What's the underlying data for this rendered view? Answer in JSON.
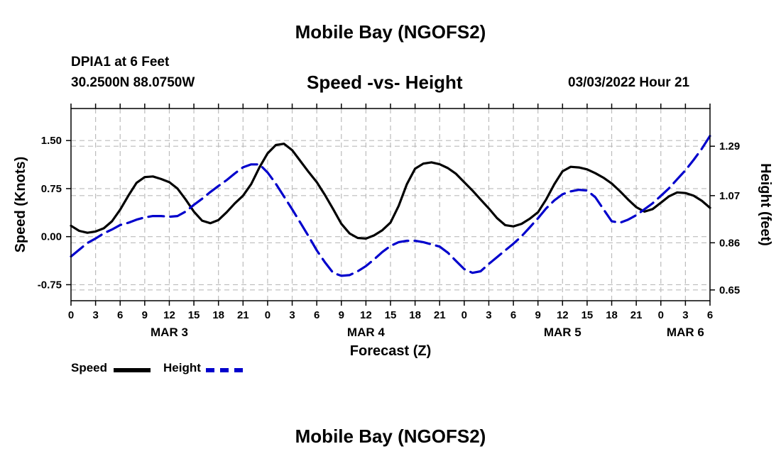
{
  "header": {
    "title": "Mobile Bay (NGOFS2)",
    "station": "DPIA1 at 6 Feet",
    "coords": "30.2500N  88.0750W",
    "subtitle": "Speed -vs- Height",
    "datetime": "03/03/2022 Hour 21"
  },
  "footer": {
    "title": "Mobile Bay (NGOFS2)"
  },
  "colors": {
    "speed": "#000000",
    "height": "#0000cc",
    "grid": "#bbbbbb"
  },
  "legend": {
    "speed_label": "Speed",
    "height_label": "Height"
  },
  "chart_data": {
    "type": "line",
    "title": "Speed -vs- Height",
    "xlabel": "Forecast (Z)",
    "ylabel": "Speed (Knots)",
    "y2label": "Height (feet)",
    "x_range": [
      0,
      78
    ],
    "ylim": [
      -1.0,
      2.0
    ],
    "y2lim": [
      0.602,
      1.458
    ],
    "x_tick_labels": [
      "0",
      "3",
      "6",
      "9",
      "12",
      "15",
      "18",
      "21",
      "0",
      "3",
      "6",
      "9",
      "12",
      "15",
      "18",
      "21",
      "0",
      "3",
      "6",
      "9",
      "12",
      "15",
      "18",
      "21",
      "0",
      "3",
      "6"
    ],
    "date_labels": [
      {
        "label": "MAR 3",
        "x": 12
      },
      {
        "label": "MAR 4",
        "x": 36
      },
      {
        "label": "MAR 5",
        "x": 60
      },
      {
        "label": "MAR 6",
        "x": 75
      }
    ],
    "y_ticks": [
      -0.75,
      0.0,
      0.75,
      1.5
    ],
    "y_tick_labels": [
      "-0.75",
      "0.00",
      "0.75",
      "1.50"
    ],
    "y2_ticks": [
      0.65,
      0.86,
      1.07,
      1.29
    ],
    "y2_tick_labels": [
      "0.65",
      "0.86",
      "1.07",
      "1.29"
    ],
    "grid": true,
    "series": [
      {
        "name": "Speed",
        "axis": "left",
        "style": "solid",
        "x": [
          0,
          1,
          2,
          3,
          4,
          5,
          6,
          7,
          8,
          9,
          10,
          11,
          12,
          13,
          14,
          15,
          16,
          17,
          18,
          19,
          20,
          21,
          22,
          23,
          24,
          25,
          26,
          27,
          28,
          29,
          30,
          31,
          32,
          33,
          34,
          35,
          36,
          37,
          38,
          39,
          40,
          41,
          42,
          43,
          44,
          45,
          46,
          47,
          48,
          49,
          50,
          51,
          52,
          53,
          54,
          55,
          56,
          57,
          58,
          59,
          60,
          61,
          62,
          63,
          64,
          65,
          66,
          67,
          68,
          69,
          70,
          71,
          72,
          73,
          74,
          75,
          76,
          77,
          78
        ],
        "values": [
          0.17,
          0.09,
          0.06,
          0.08,
          0.13,
          0.24,
          0.42,
          0.64,
          0.84,
          0.93,
          0.94,
          0.9,
          0.85,
          0.75,
          0.58,
          0.39,
          0.25,
          0.21,
          0.26,
          0.38,
          0.52,
          0.64,
          0.82,
          1.08,
          1.3,
          1.43,
          1.45,
          1.35,
          1.18,
          1.01,
          0.85,
          0.65,
          0.43,
          0.2,
          0.05,
          -0.02,
          -0.03,
          0.02,
          0.1,
          0.22,
          0.48,
          0.82,
          1.06,
          1.14,
          1.16,
          1.13,
          1.07,
          0.98,
          0.85,
          0.72,
          0.58,
          0.44,
          0.29,
          0.18,
          0.16,
          0.2,
          0.28,
          0.38,
          0.58,
          0.82,
          1.02,
          1.09,
          1.08,
          1.05,
          0.99,
          0.92,
          0.83,
          0.71,
          0.58,
          0.46,
          0.39,
          0.43,
          0.53,
          0.63,
          0.69,
          0.68,
          0.64,
          0.56,
          0.45
        ]
      },
      {
        "name": "Height",
        "axis": "right",
        "style": "dashed",
        "x": [
          0,
          1,
          2,
          3,
          4,
          5,
          6,
          7,
          8,
          9,
          10,
          11,
          12,
          13,
          14,
          15,
          16,
          17,
          18,
          19,
          20,
          21,
          22,
          23,
          24,
          25,
          26,
          27,
          28,
          29,
          30,
          31,
          32,
          33,
          34,
          35,
          36,
          37,
          38,
          39,
          40,
          41,
          42,
          43,
          44,
          45,
          46,
          47,
          48,
          49,
          50,
          51,
          52,
          53,
          54,
          55,
          56,
          57,
          58,
          59,
          60,
          61,
          62,
          63,
          64,
          65,
          66,
          67,
          68,
          69,
          70,
          71,
          72,
          73,
          74,
          75,
          76,
          77,
          78
        ],
        "values": [
          0.799,
          0.829,
          0.859,
          0.879,
          0.902,
          0.919,
          0.939,
          0.949,
          0.963,
          0.973,
          0.979,
          0.979,
          0.976,
          0.979,
          0.999,
          1.029,
          1.056,
          1.086,
          1.113,
          1.139,
          1.169,
          1.196,
          1.209,
          1.209,
          1.173,
          1.123,
          1.066,
          1.009,
          0.949,
          0.889,
          0.826,
          0.773,
          0.726,
          0.713,
          0.716,
          0.733,
          0.756,
          0.786,
          0.819,
          0.846,
          0.863,
          0.869,
          0.869,
          0.863,
          0.853,
          0.843,
          0.816,
          0.779,
          0.743,
          0.726,
          0.733,
          0.766,
          0.796,
          0.826,
          0.856,
          0.889,
          0.929,
          0.969,
          1.013,
          1.049,
          1.076,
          1.089,
          1.096,
          1.093,
          1.063,
          1.009,
          0.956,
          0.949,
          0.963,
          0.983,
          1.009,
          1.036,
          1.069,
          1.103,
          1.143,
          1.183,
          1.229,
          1.279,
          1.336
        ]
      }
    ]
  }
}
